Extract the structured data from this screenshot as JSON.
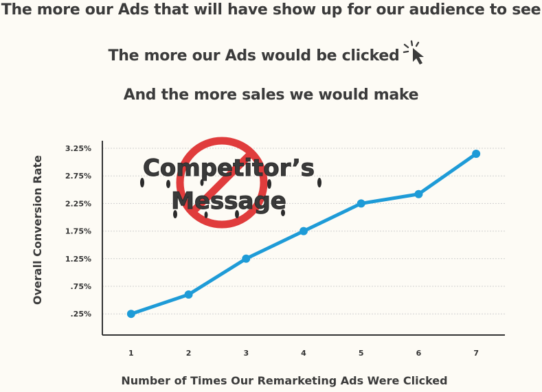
{
  "headlines": {
    "line1": "The more our Ads that will have show up for our audience to see",
    "line2": "The more our Ads would be clicked",
    "line3": "And the more sales we would make"
  },
  "icons": {
    "cursor": "cursor-click-icon",
    "no_sign": "prohibited-sign-icon"
  },
  "stamp": {
    "line1": "Competitor’s",
    "line2": "Message"
  },
  "colors": {
    "line": "#1e9bd7",
    "no_sign": "#e03c3c",
    "grid": "#cfcfcf",
    "text": "#3b3b3b"
  },
  "chart_data": {
    "type": "line",
    "x": [
      1,
      2,
      3,
      4,
      5,
      6,
      7
    ],
    "y": [
      0.25,
      0.6,
      1.25,
      1.75,
      2.25,
      2.42,
      3.15
    ],
    "x_tick_labels": [
      "1",
      "2",
      "3",
      "4",
      "5",
      "6",
      "7"
    ],
    "y_ticks": [
      0.25,
      0.75,
      1.25,
      1.75,
      2.25,
      2.75,
      3.25
    ],
    "y_tick_labels": [
      ".25%",
      ".75%",
      "1.25%",
      "1.75%",
      "2.25%",
      "2.75%",
      "3.25%"
    ],
    "xlabel": "Number of Times Our Remarketing Ads Were Clicked",
    "ylabel": "Overall Conversion Rate",
    "xlim": [
      0.5,
      7.5
    ],
    "ylim": [
      -0.27,
      3.25
    ],
    "grid": "horizontal-dotted"
  }
}
